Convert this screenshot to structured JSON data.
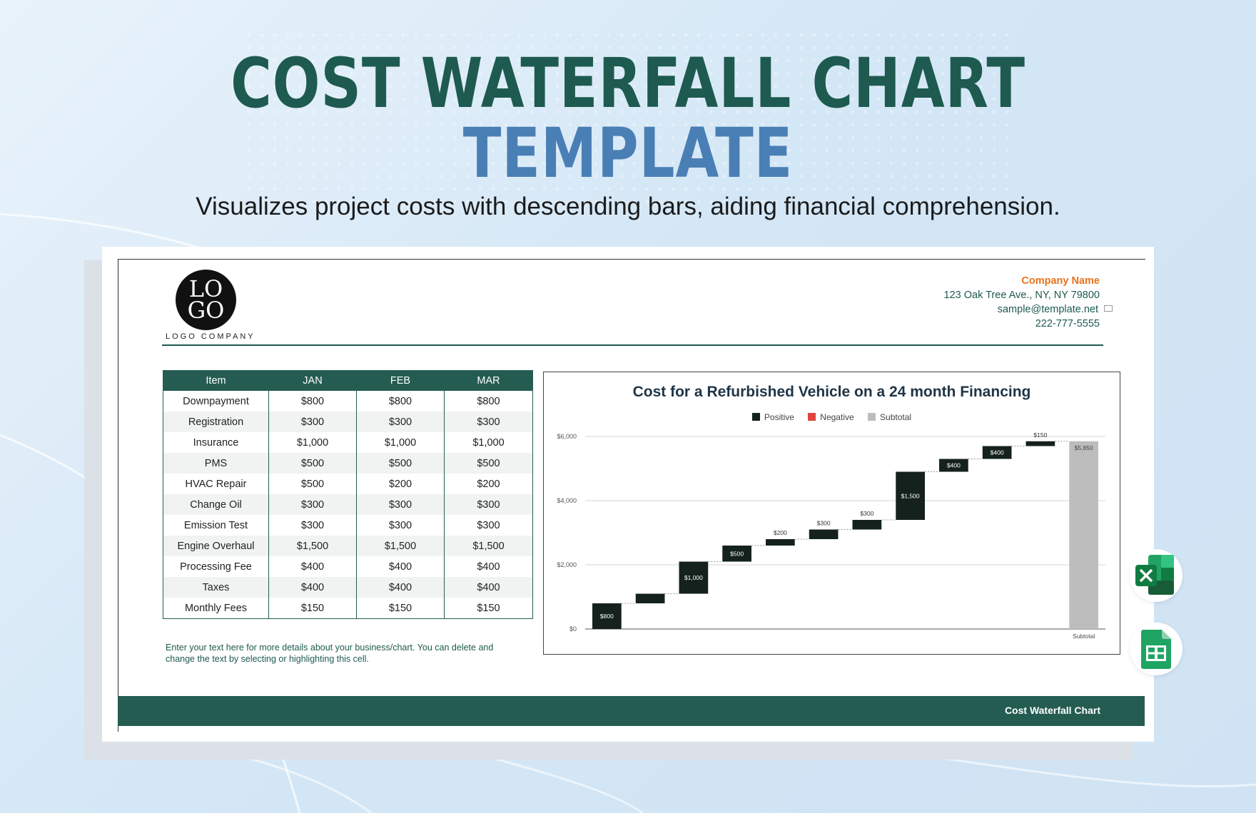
{
  "hero": {
    "title_line1": "COST WATERFALL CHART",
    "title_line2": "TEMPLATE",
    "subtitle": "Visualizes project costs with descending bars, aiding financial comprehension."
  },
  "logo": {
    "line1": "LO",
    "line2": "GO",
    "company": "LOGO COMPANY"
  },
  "company": {
    "name": "Company Name",
    "address": "123 Oak Tree Ave., NY, NY 79800",
    "email": "sample@template.net",
    "phone": "222-777-5555"
  },
  "table": {
    "headers": [
      "Item",
      "JAN",
      "FEB",
      "MAR"
    ],
    "rows": [
      [
        "Downpayment",
        "$800",
        "$800",
        "$800"
      ],
      [
        "Registration",
        "$300",
        "$300",
        "$300"
      ],
      [
        "Insurance",
        "$1,000",
        "$1,000",
        "$1,000"
      ],
      [
        "PMS",
        "$500",
        "$500",
        "$500"
      ],
      [
        "HVAC Repair",
        "$500",
        "$200",
        "$200"
      ],
      [
        "Change Oil",
        "$300",
        "$300",
        "$300"
      ],
      [
        "Emission Test",
        "$300",
        "$300",
        "$300"
      ],
      [
        "Engine Overhaul",
        "$1,500",
        "$1,500",
        "$1,500"
      ],
      [
        "Processing Fee",
        "$400",
        "$400",
        "$400"
      ],
      [
        "Taxes",
        "$400",
        "$400",
        "$400"
      ],
      [
        "Monthly Fees",
        "$150",
        "$150",
        "$150"
      ]
    ]
  },
  "note": "Enter your text here for more details about your business/chart. You can delete and change the text by selecting or highlighting this cell.",
  "footer": {
    "label": "Cost Waterfall Chart"
  },
  "chart_data": {
    "type": "bar",
    "subtype": "waterfall",
    "title": "Cost for a Refurbished Vehicle on a 24 month Financing",
    "legend": [
      {
        "name": "Positive",
        "color": "#14211c"
      },
      {
        "name": "Negative",
        "color": "#e0443a"
      },
      {
        "name": "Subtotal",
        "color": "#bdbdbd"
      }
    ],
    "legend_position": "top-center",
    "ylim": [
      0,
      6000
    ],
    "yticks": [
      "$0",
      "$2,000",
      "$4,000",
      "$6,000"
    ],
    "ytick_values": [
      0,
      2000,
      4000,
      6000
    ],
    "grid": true,
    "steps": [
      {
        "value": 800,
        "label": "$800",
        "kind": "positive"
      },
      {
        "value": 300,
        "label": "",
        "kind": "positive"
      },
      {
        "value": 1000,
        "label": "$1,000",
        "kind": "positive"
      },
      {
        "value": 500,
        "label": "$500",
        "kind": "positive"
      },
      {
        "value": 200,
        "label": "$200",
        "kind": "positive"
      },
      {
        "value": 300,
        "label": "$300",
        "kind": "positive"
      },
      {
        "value": 300,
        "label": "$300",
        "kind": "positive"
      },
      {
        "value": 1500,
        "label": "$1,500",
        "kind": "positive"
      },
      {
        "value": 400,
        "label": "$400",
        "kind": "positive"
      },
      {
        "value": 400,
        "label": "$400",
        "kind": "positive"
      },
      {
        "value": 150,
        "label": "$150",
        "kind": "positive"
      },
      {
        "value": 5850,
        "label": "$5,850",
        "kind": "subtotal",
        "category": "Subtotal"
      }
    ]
  },
  "colors": {
    "accent_green": "#245c52",
    "title_blue": "#4a7fb5",
    "orange": "#e8721c"
  },
  "icons": [
    "excel-icon",
    "google-sheets-icon",
    "mail-icon"
  ]
}
